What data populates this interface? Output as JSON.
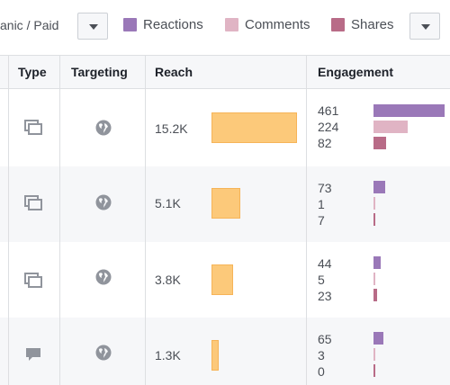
{
  "toolbar": {
    "org_paid_label": "anic / Paid",
    "legend": [
      {
        "label": "Reactions",
        "color": "#9a78b8"
      },
      {
        "label": "Comments",
        "color": "#e0b4c4"
      },
      {
        "label": "Shares",
        "color": "#b86b87"
      }
    ]
  },
  "table": {
    "columns": [
      "Type",
      "Targeting",
      "Reach",
      "Engagement"
    ],
    "rows": [
      {
        "type_icon": "multi-photo-icon",
        "targeting_icon": "globe-icon",
        "reach": "15.2K",
        "reactions": "461",
        "comments": "224",
        "shares": "82"
      },
      {
        "type_icon": "multi-photo-icon",
        "targeting_icon": "globe-icon",
        "reach": "5.1K",
        "reactions": "73",
        "comments": "1",
        "shares": "7"
      },
      {
        "type_icon": "multi-photo-icon",
        "targeting_icon": "globe-icon",
        "reach": "3.8K",
        "reactions": "44",
        "comments": "5",
        "shares": "23"
      },
      {
        "type_icon": "status-comment-icon",
        "targeting_icon": "globe-icon",
        "reach": "1.3K",
        "reactions": "65",
        "comments": "3",
        "shares": "0"
      }
    ]
  }
}
